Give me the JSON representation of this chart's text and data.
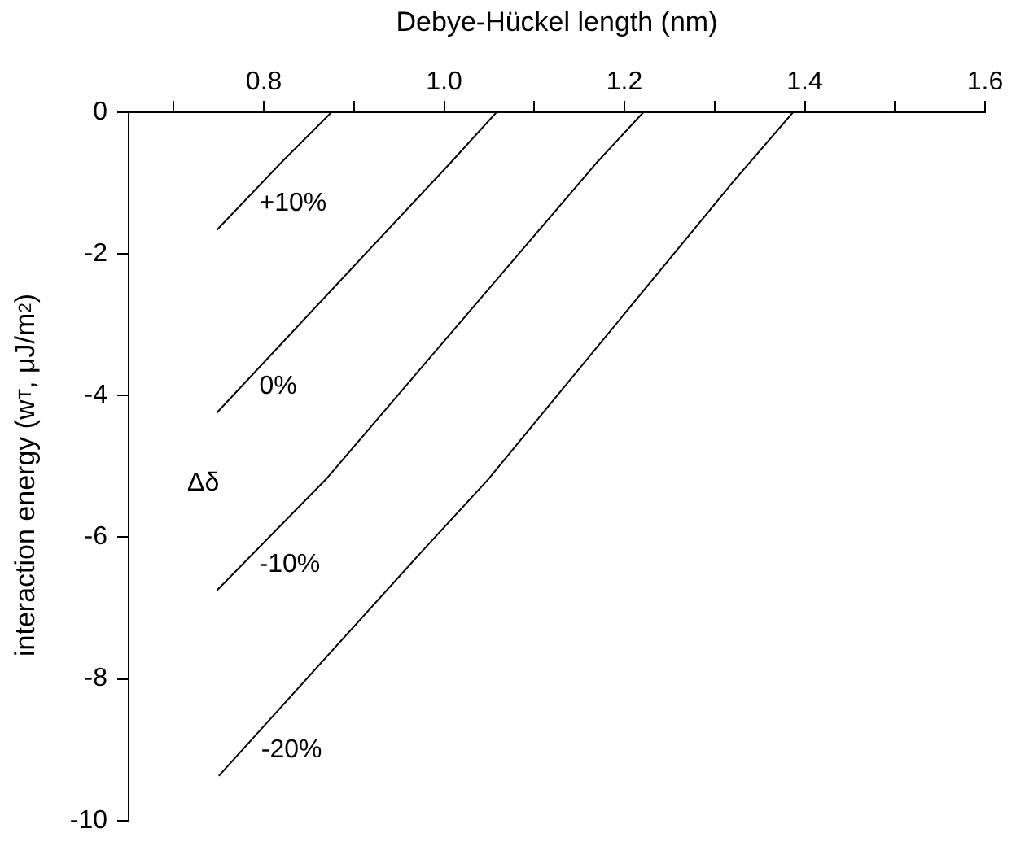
{
  "chart_data": {
    "type": "line",
    "xlabel": "Debye-Hückel length (nm)",
    "ylabel": "interaction energy (w$_{T}$, μJ/m$^{2}$)",
    "legend_title": "Δδ",
    "series": [
      {
        "name": "+10%",
        "color": "#000000",
        "x": [
          0.748,
          0.82,
          0.875
        ],
        "values": [
          -1.66,
          -0.7,
          0
        ]
      },
      {
        "name": "0%",
        "color": "#000000",
        "x": [
          0.748,
          1.008,
          1.058
        ],
        "values": [
          -4.24,
          -0.7,
          0
        ]
      },
      {
        "name": "-10%",
        "color": "#000000",
        "x": [
          0.748,
          0.869,
          1.17,
          1.221
        ],
        "values": [
          -6.75,
          -5.18,
          -0.7,
          0
        ]
      },
      {
        "name": "-20%",
        "color": "#000000",
        "x": [
          0.75,
          0.971,
          1.049,
          1.32,
          1.387
        ],
        "values": [
          -9.37,
          -6.26,
          -5.18,
          -0.99,
          0
        ]
      }
    ],
    "xlim": [
      0.65,
      1.6
    ],
    "xticks": [
      {
        "value": 0.7,
        "label": null
      },
      {
        "value": 0.8,
        "label": "0.8"
      },
      {
        "value": 0.9,
        "label": null
      },
      {
        "value": 1.0,
        "label": "1.0"
      },
      {
        "value": 1.1,
        "label": null
      },
      {
        "value": 1.2,
        "label": "1.2"
      },
      {
        "value": 1.3,
        "label": null
      },
      {
        "value": 1.4,
        "label": "1.4"
      },
      {
        "value": 1.5,
        "label": null
      },
      {
        "value": 1.6,
        "label": "1.6"
      }
    ],
    "ylim": [
      -10,
      0
    ],
    "yticks": [
      -10,
      -8,
      -6,
      -4,
      -2,
      0
    ],
    "grid": false,
    "legend": false,
    "marker": "none",
    "line_style": "solid"
  }
}
